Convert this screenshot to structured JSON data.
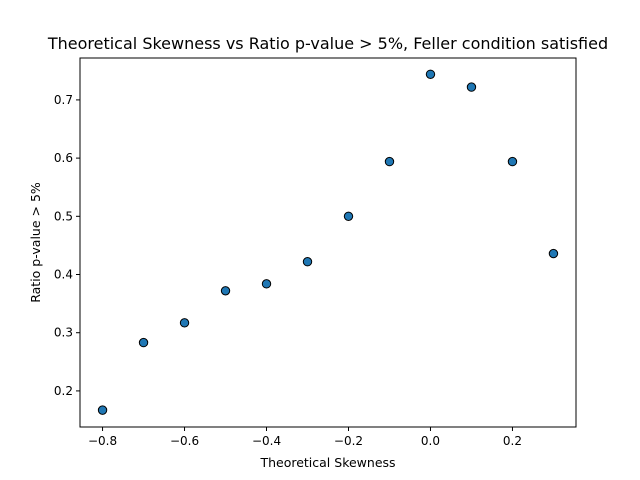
{
  "chart_data": {
    "type": "scatter",
    "title": "Theoretical Skewness vs Ratio p-value > 5%, Feller condition satisfied",
    "xlabel": "Theoretical Skewness",
    "ylabel": "Ratio p-value > 5%",
    "xlim": [
      -0.855,
      0.355
    ],
    "ylim": [
      0.138,
      0.772
    ],
    "xticks": [
      -0.8,
      -0.6,
      -0.4,
      -0.2,
      0.0,
      0.2
    ],
    "xtick_labels": [
      "−0.8",
      "−0.6",
      "−0.4",
      "−0.2",
      "0.0",
      "0.2"
    ],
    "yticks": [
      0.2,
      0.3,
      0.4,
      0.5,
      0.6,
      0.7
    ],
    "ytick_labels": [
      "0.2",
      "0.3",
      "0.4",
      "0.5",
      "0.6",
      "0.7"
    ],
    "grid": false,
    "marker_color": "#1f77b4",
    "marker_edge_color": "#000000",
    "points": [
      {
        "x": -0.8,
        "y": 0.167
      },
      {
        "x": -0.7,
        "y": 0.283
      },
      {
        "x": -0.6,
        "y": 0.317
      },
      {
        "x": -0.5,
        "y": 0.372
      },
      {
        "x": -0.4,
        "y": 0.384
      },
      {
        "x": -0.3,
        "y": 0.422
      },
      {
        "x": -0.2,
        "y": 0.5
      },
      {
        "x": -0.1,
        "y": 0.594
      },
      {
        "x": 0.0,
        "y": 0.744
      },
      {
        "x": 0.1,
        "y": 0.722
      },
      {
        "x": 0.2,
        "y": 0.594
      },
      {
        "x": 0.3,
        "y": 0.436
      }
    ]
  }
}
